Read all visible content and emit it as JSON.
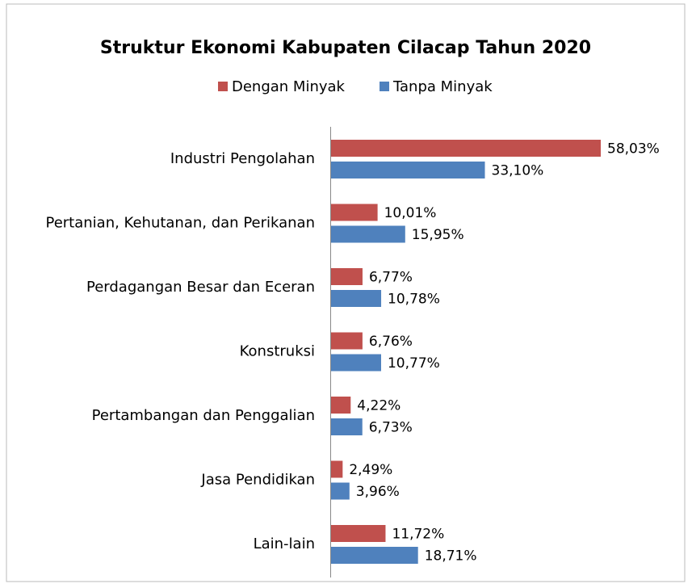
{
  "chart_data": {
    "type": "bar",
    "orientation": "horizontal",
    "title": "Struktur Ekonomi Kabupaten Cilacap Tahun 2020",
    "categories": [
      "Industri Pengolahan",
      "Pertanian, Kehutanan, dan Perikanan",
      "Perdagangan Besar dan Eceran",
      "Konstruksi",
      "Pertambangan dan Penggalian",
      "Jasa Pendidikan",
      "Lain-lain"
    ],
    "series": [
      {
        "name": "Dengan Minyak",
        "color": "#c0504d",
        "values": [
          58.03,
          10.01,
          6.77,
          6.76,
          4.22,
          2.49,
          11.72
        ],
        "value_labels": [
          "58,03%",
          "10,01%",
          "6,77%",
          "6,76%",
          "4,22%",
          "2,49%",
          "11,72%"
        ]
      },
      {
        "name": "Tanpa Minyak",
        "color": "#4f81bd",
        "values": [
          33.1,
          15.95,
          10.78,
          10.77,
          6.73,
          3.96,
          18.71
        ],
        "value_labels": [
          "33,10%",
          "15,95%",
          "10,78%",
          "10,77%",
          "6,73%",
          "3,96%",
          "18,71%"
        ]
      }
    ],
    "legend": "top"
  }
}
